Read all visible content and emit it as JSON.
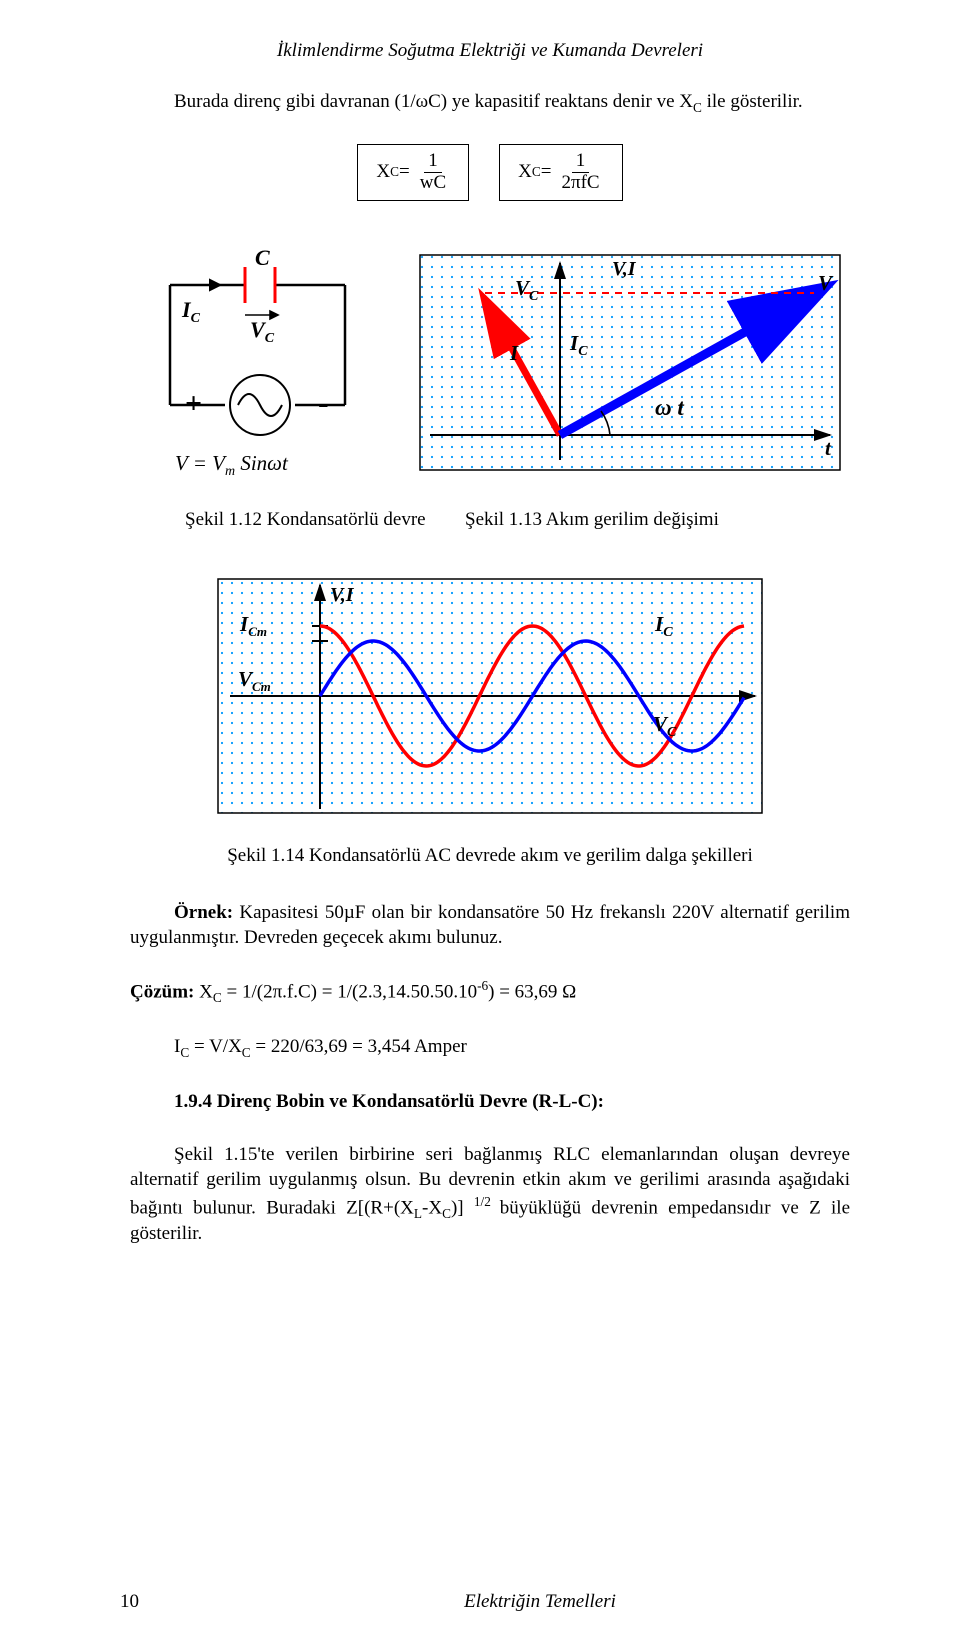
{
  "header": "İklimlendirme Soğutma Elektriği ve Kumanda Devreleri",
  "intro": "Burada direnç gibi davranan (1/ωC) ye kapasitif reaktans denir ve X",
  "intro_sub": "C",
  "intro_tail": " ile gösterilir.",
  "formula1": {
    "lhs_pre": "X",
    "lhs_sub": "C",
    "eq": " = ",
    "num": "1",
    "den": "wC"
  },
  "formula2": {
    "lhs_pre": "X",
    "lhs_sub": "C",
    "eq": " = ",
    "num": "1",
    "den": "2πfC"
  },
  "caption1": "Şekil 1.12 Kondansatörlü devre",
  "caption2": "Şekil 1.13 Akım gerilim değişimi",
  "caption3": "Şekil 1.14 Kondansatörlü AC devrede akım ve gerilim dalga şekilleri",
  "example_lead": "Örnek:",
  "example_body": " Kapasitesi 50µF olan bir kondansatöre 50 Hz frekanslı 220V alternatif gerilim uygulanmıştır. Devreden geçecek akımı bulunuz.",
  "solution_lead": "Çözüm:",
  "solution_body": " X",
  "solution_sub1": "C",
  "solution_body2": " = 1/(2π.f.C) = 1/(2.3,14.50.50.10",
  "solution_sup": "-6",
  "solution_body3": ") = 63,69 Ω",
  "ic_line_1": "I",
  "ic_sub1": "C",
  "ic_line_2": " = V/X",
  "ic_sub2": "C",
  "ic_line_3": " = 220/63,69 = 3,454 Amper",
  "section": "1.9.4 Direnç Bobin ve Kondansatörlü Devre (R-L-C):",
  "rlc_para_a": "Şekil 1.15'te verilen birbirine seri bağlanmış RLC elemanlarından oluşan devreye alternatif gerilim uygulanmış olsun. Bu devrenin etkin akım ve gerilimi arasında aşağıdaki bağıntı bulunur. Buradaki Z[(R+(X",
  "rlc_sub1": "L",
  "rlc_mid": "-X",
  "rlc_sub2": "C",
  "rlc_para_b": ")] ",
  "rlc_sup": "1/2 ",
  "rlc_para_c": "büyüklüğü devrenin empedansıdır ve Z ile gösterilir.",
  "footer_page": "10",
  "footer_title": "Elektriğin Temelleri",
  "ci_labels": {
    "C": "C",
    "IC": "I_C",
    "VC": "V_C",
    "plus": "+",
    "minus": "-",
    "eq": "V = V_m Sinωt"
  },
  "circuit_colors": {
    "wire": "#000000",
    "cap_red": "#ff0000",
    "source": "#000000"
  },
  "phasor": {
    "bg": "#ffffff",
    "grid_color": "#0099ff",
    "axis_color": "#000000",
    "I_vec_color": "#ff0000",
    "V_vec_color": "#0000ff",
    "dash_color": "#ff0000",
    "labels": {
      "VC": "V_C",
      "I": "I",
      "IC": "I_C",
      "VI": "V,I",
      "V": "V",
      "wt": "ω t",
      "t": "t"
    }
  },
  "wave": {
    "bg": "#ffffff",
    "grid_color": "#0099ff",
    "axis_color": "#000000",
    "I_color": "#ff0000",
    "V_color": "#0000ff",
    "labels": {
      "ICm": "I_Cm",
      "VCm": "V_Cm",
      "VI": "V,I",
      "IC": "I_C",
      "VC": "V_C"
    },
    "amp_I": 70,
    "amp_V": 55,
    "periods": 2
  }
}
